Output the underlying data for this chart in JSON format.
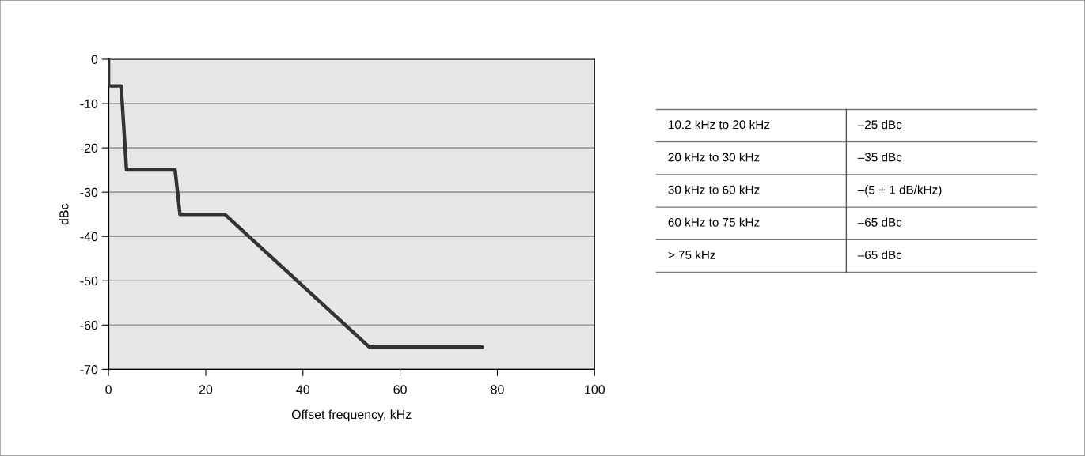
{
  "chart_data": [
    {
      "type": "line",
      "xlabel": "Offset frequency, kHz",
      "ylabel": "dBc",
      "series": [
        {
          "color": "#333333",
          "x": [
            0,
            0,
            2.6,
            3.7,
            13.7,
            14.7,
            23.9,
            53.7,
            76.9
          ],
          "values": [
            0,
            -6,
            -6,
            -25,
            -25,
            -35,
            -35,
            -65,
            -65
          ]
        }
      ],
      "xlim": [
        0,
        100
      ],
      "xticks": [
        0,
        20,
        40,
        60,
        80,
        100
      ],
      "ylim": [
        -70,
        0
      ],
      "yticks": [
        0,
        -10,
        -20,
        -30,
        -40,
        -50,
        -60,
        -70
      ],
      "grid": "y",
      "marker": "none",
      "line_style": "solid"
    },
    {
      "type": "other",
      "annotations": [
        "10.2 kHz to 20 kHz",
        "–25 dBc",
        "20 kHz to 30 kHz",
        "–35 dBc",
        "30 kHz to 60 kHz",
        "–(5 + 1 dB/kHz)",
        "60 kHz to 75 kHz",
        "–65 dBc",
        "> 75 kHz",
        "–65 dBc"
      ]
    }
  ]
}
